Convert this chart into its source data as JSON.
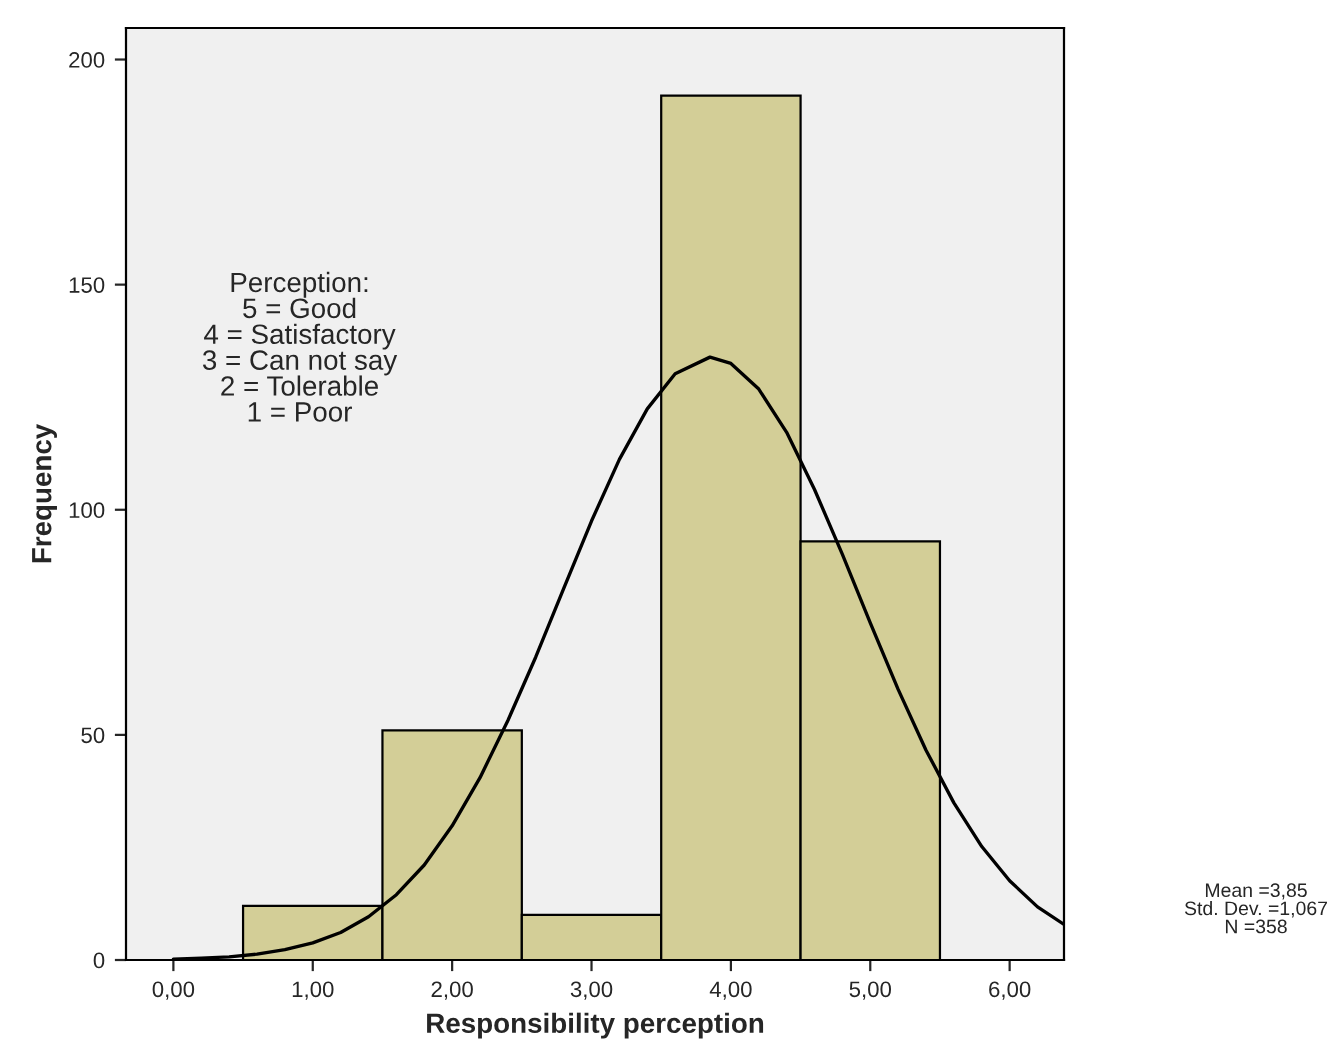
{
  "chart_data": {
    "type": "histogram",
    "xlabel": "Responsibility perception",
    "ylabel": "Frequency",
    "bins": [
      0.5,
      1.5,
      2.5,
      3.5,
      4.5,
      5.5
    ],
    "values": [
      12,
      51,
      10,
      192,
      93
    ],
    "color": "#d3ce97",
    "series": [
      {
        "type": "line",
        "color": "#000000",
        "x": [
          0,
          0.2,
          0.4,
          0.6,
          0.8,
          1.0,
          1.2,
          1.4,
          1.6,
          1.8,
          2.0,
          2.2,
          2.4,
          2.6,
          2.8,
          3.0,
          3.2,
          3.4,
          3.6,
          3.85,
          4.0,
          4.2,
          4.4,
          4.6,
          4.8,
          5.0,
          5.2,
          5.4,
          5.6,
          5.8,
          6.0,
          6.2,
          6.39
        ],
        "values": [
          0.2,
          0.4,
          0.7,
          1.3,
          2.3,
          3.8,
          6.1,
          9.6,
          14.5,
          21.1,
          29.8,
          40.5,
          53.2,
          67.3,
          82.5,
          97.5,
          111.2,
          122.4,
          130.2,
          133.9,
          132.5,
          126.8,
          117.2,
          104.5,
          90.1,
          74.9,
          60.1,
          46.6,
          34.9,
          25.2,
          17.6,
          11.8,
          7.9
        ]
      }
    ],
    "xlim": [
      -0.34,
      6.39
    ],
    "ylim": [
      0,
      207
    ],
    "xticks": [
      {
        "value": 0,
        "label": "0,00"
      },
      {
        "value": 1,
        "label": "1,00"
      },
      {
        "value": 2,
        "label": "2,00"
      },
      {
        "value": 3,
        "label": "3,00"
      },
      {
        "value": 4,
        "label": "4,00"
      },
      {
        "value": 5,
        "label": "5,00"
      },
      {
        "value": 6,
        "label": "6,00"
      }
    ],
    "yticks": [
      0,
      50,
      100,
      150,
      200
    ],
    "grid": false,
    "legend": false,
    "annotations": [
      "Perception:\n5 = Good\n4 = Satisfactory\n3 = Can not say\n2 = Tolerable\n1 = Poor",
      "Mean =3,85\nStd. Dev. =1,067\nN =358"
    ]
  }
}
